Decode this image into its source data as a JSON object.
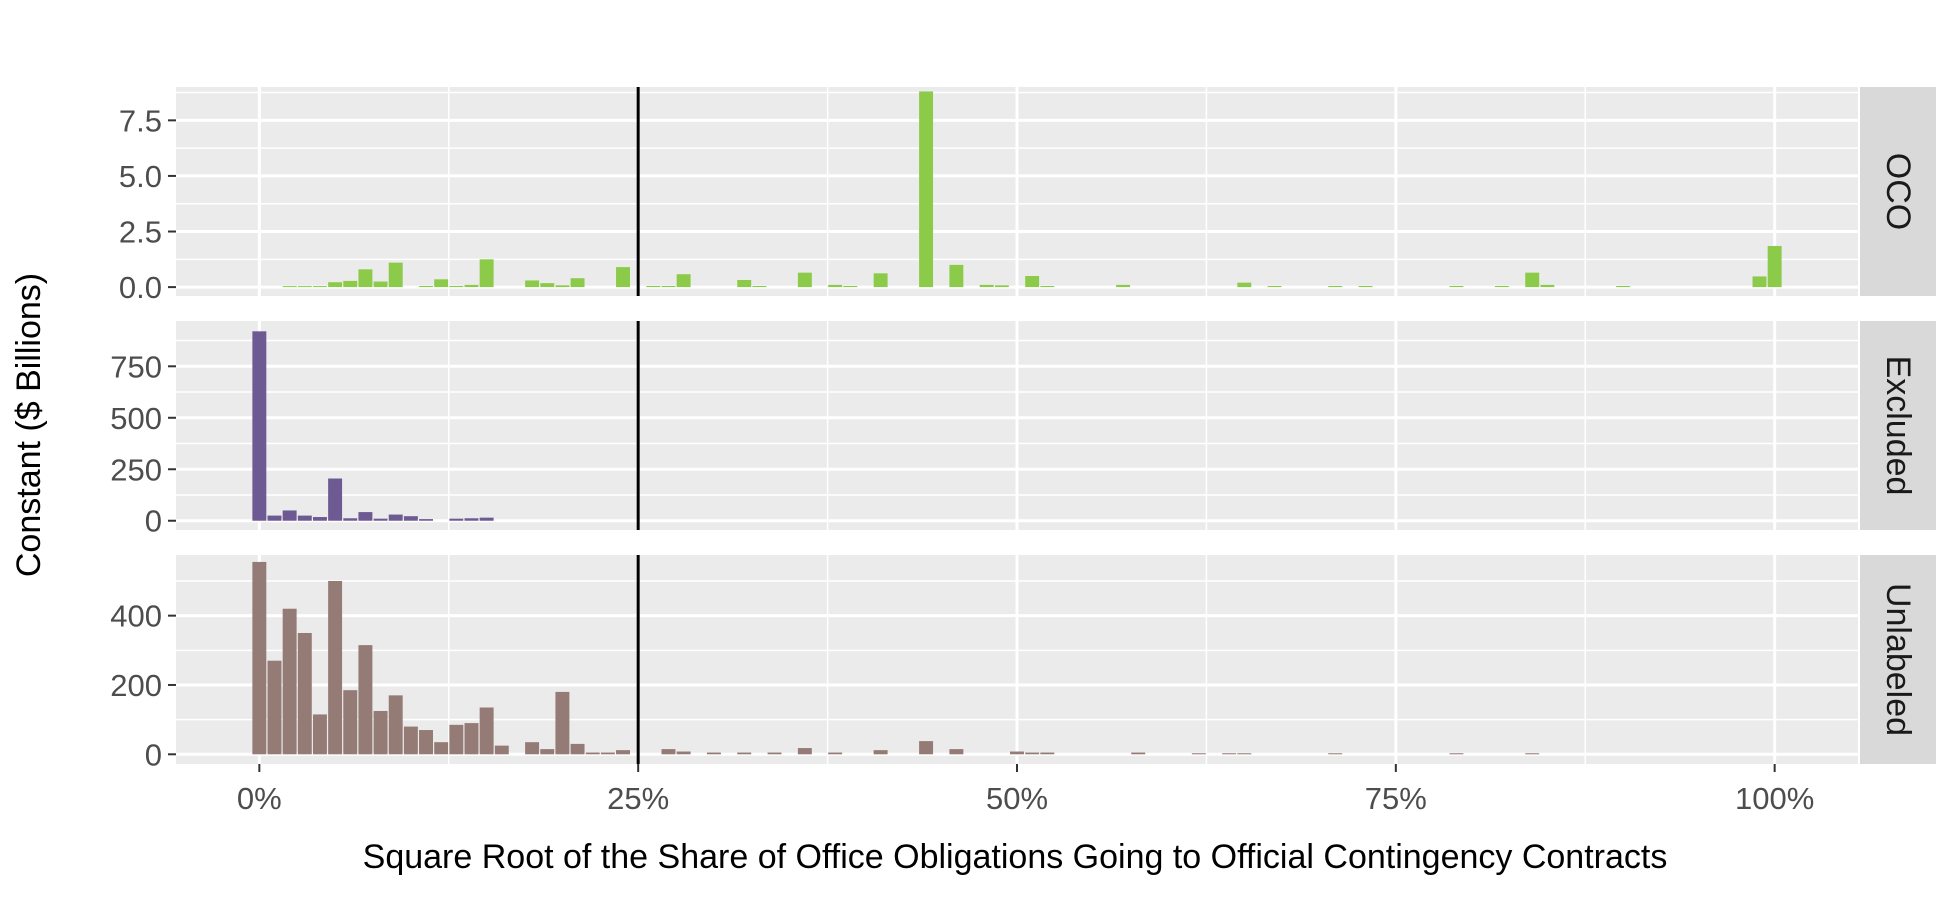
{
  "chart_data": {
    "type": "bar",
    "xlabel": "Square Root of the Share of Office Obligations Going to Official Contingency Contracts",
    "ylabel": "Constant ($ Billions)",
    "x_ticks": [
      {
        "value": 0,
        "label": "0%"
      },
      {
        "value": 0.25,
        "label": "25%"
      },
      {
        "value": 0.5,
        "label": "50%"
      },
      {
        "value": 0.75,
        "label": "75%"
      },
      {
        "value": 1,
        "label": "100%"
      }
    ],
    "xlim": [
      -0.055,
      1.055
    ],
    "bin_width": 0.01,
    "vline_x": 0.25,
    "grid": true,
    "panels": [
      {
        "name": "OCO",
        "color": "#8CCB4A",
        "ylim": [
          -0.4,
          9.0
        ],
        "y_ticks": [
          {
            "value": 0,
            "label": "0.0"
          },
          {
            "value": 2.5,
            "label": "2.5"
          },
          {
            "value": 5,
            "label": "5.0"
          },
          {
            "value": 7.5,
            "label": "7.5"
          }
        ],
        "bars": [
          [
            0.02,
            0.02
          ],
          [
            0.03,
            0.02
          ],
          [
            0.04,
            0.03
          ],
          [
            0.05,
            0.22
          ],
          [
            0.06,
            0.28
          ],
          [
            0.07,
            0.8
          ],
          [
            0.08,
            0.25
          ],
          [
            0.09,
            1.1
          ],
          [
            0.11,
            0.05
          ],
          [
            0.12,
            0.35
          ],
          [
            0.13,
            0.05
          ],
          [
            0.14,
            0.1
          ],
          [
            0.15,
            1.25
          ],
          [
            0.18,
            0.3
          ],
          [
            0.19,
            0.18
          ],
          [
            0.2,
            0.08
          ],
          [
            0.21,
            0.4
          ],
          [
            0.24,
            0.9
          ],
          [
            0.26,
            0.05
          ],
          [
            0.27,
            0.05
          ],
          [
            0.28,
            0.58
          ],
          [
            0.32,
            0.32
          ],
          [
            0.33,
            0.05
          ],
          [
            0.36,
            0.65
          ],
          [
            0.38,
            0.1
          ],
          [
            0.39,
            0.05
          ],
          [
            0.41,
            0.62
          ],
          [
            0.44,
            8.8
          ],
          [
            0.46,
            1.0
          ],
          [
            0.48,
            0.1
          ],
          [
            0.49,
            0.08
          ],
          [
            0.51,
            0.5
          ],
          [
            0.52,
            0.05
          ],
          [
            0.57,
            0.1
          ],
          [
            0.65,
            0.2
          ],
          [
            0.67,
            0.05
          ],
          [
            0.71,
            0.05
          ],
          [
            0.73,
            0.05
          ],
          [
            0.79,
            0.05
          ],
          [
            0.82,
            0.05
          ],
          [
            0.84,
            0.65
          ],
          [
            0.85,
            0.1
          ],
          [
            0.9,
            0.05
          ],
          [
            0.99,
            0.48
          ],
          [
            1.0,
            1.85
          ]
        ]
      },
      {
        "name": "Excluded",
        "color": "#6E5A93",
        "ylim": [
          -45,
          970
        ],
        "y_ticks": [
          {
            "value": 0,
            "label": "0"
          },
          {
            "value": 250,
            "label": "250"
          },
          {
            "value": 500,
            "label": "500"
          },
          {
            "value": 750,
            "label": "750"
          }
        ],
        "bars": [
          [
            0.0,
            920
          ],
          [
            0.01,
            25
          ],
          [
            0.02,
            50
          ],
          [
            0.03,
            25
          ],
          [
            0.04,
            18
          ],
          [
            0.05,
            205
          ],
          [
            0.06,
            12
          ],
          [
            0.07,
            42
          ],
          [
            0.08,
            10
          ],
          [
            0.09,
            30
          ],
          [
            0.1,
            22
          ],
          [
            0.11,
            8
          ],
          [
            0.13,
            10
          ],
          [
            0.14,
            12
          ],
          [
            0.15,
            15
          ]
        ]
      },
      {
        "name": "Unlabeled",
        "color": "#957B76",
        "ylim": [
          -28,
          575
        ],
        "y_ticks": [
          {
            "value": 0,
            "label": "0"
          },
          {
            "value": 200,
            "label": "200"
          },
          {
            "value": 400,
            "label": "400"
          }
        ],
        "bars": [
          [
            0.0,
            555
          ],
          [
            0.01,
            270
          ],
          [
            0.02,
            420
          ],
          [
            0.03,
            350
          ],
          [
            0.04,
            115
          ],
          [
            0.05,
            500
          ],
          [
            0.06,
            185
          ],
          [
            0.07,
            315
          ],
          [
            0.08,
            125
          ],
          [
            0.09,
            170
          ],
          [
            0.1,
            80
          ],
          [
            0.11,
            70
          ],
          [
            0.12,
            35
          ],
          [
            0.13,
            85
          ],
          [
            0.14,
            90
          ],
          [
            0.15,
            135
          ],
          [
            0.16,
            25
          ],
          [
            0.18,
            35
          ],
          [
            0.19,
            15
          ],
          [
            0.2,
            180
          ],
          [
            0.21,
            30
          ],
          [
            0.22,
            5
          ],
          [
            0.23,
            5
          ],
          [
            0.24,
            12
          ],
          [
            0.27,
            15
          ],
          [
            0.28,
            8
          ],
          [
            0.3,
            5
          ],
          [
            0.32,
            5
          ],
          [
            0.34,
            5
          ],
          [
            0.36,
            18
          ],
          [
            0.38,
            5
          ],
          [
            0.41,
            12
          ],
          [
            0.44,
            38
          ],
          [
            0.46,
            15
          ],
          [
            0.5,
            8
          ],
          [
            0.51,
            5
          ],
          [
            0.52,
            5
          ],
          [
            0.58,
            5
          ],
          [
            0.62,
            3
          ],
          [
            0.64,
            3
          ],
          [
            0.65,
            3
          ],
          [
            0.71,
            3
          ],
          [
            0.79,
            3
          ],
          [
            0.84,
            3
          ]
        ]
      }
    ]
  }
}
